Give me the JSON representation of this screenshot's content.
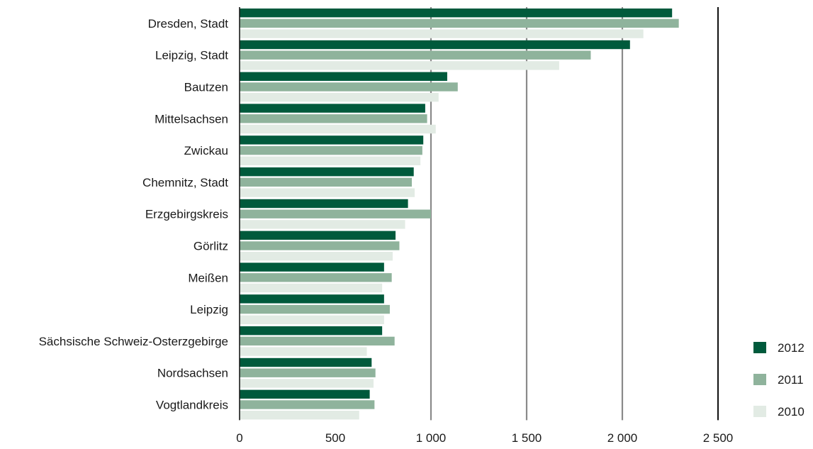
{
  "chart_data": {
    "type": "bar",
    "orientation": "horizontal",
    "categories": [
      "Dresden, Stadt",
      "Leipzig, Stadt",
      "Bautzen",
      "Mittelsachsen",
      "Zwickau",
      "Chemnitz, Stadt",
      "Erzgebirgskreis",
      "Görlitz",
      "Meißen",
      "Leipzig",
      "Sächsische Schweiz-Osterzgebirge",
      "Nordsachsen",
      "Vogtlandkreis"
    ],
    "series": [
      {
        "name": "2012",
        "color": "#005a3c",
        "values": [
          2260,
          2040,
          1085,
          970,
          960,
          910,
          880,
          815,
          755,
          755,
          745,
          690,
          680
        ]
      },
      {
        "name": "2011",
        "color": "#8fb39c",
        "values": [
          2295,
          1835,
          1140,
          980,
          955,
          900,
          1000,
          835,
          795,
          785,
          810,
          710,
          705
        ]
      },
      {
        "name": "2010",
        "color": "#e2ebe4",
        "values": [
          2110,
          1670,
          1040,
          1025,
          945,
          915,
          865,
          800,
          745,
          755,
          665,
          700,
          625
        ]
      }
    ],
    "xlim": [
      0,
      2500
    ],
    "xticks": [
      0,
      500,
      1000,
      1500,
      2000,
      2500
    ],
    "xtick_labels": [
      "0",
      "500",
      "1 000",
      "1 500",
      "2 000",
      "2 500"
    ],
    "gridlines": [
      1000,
      1500,
      2000
    ],
    "grid_color": "#8a8a8a",
    "legend": {
      "position": "bottom-right",
      "entries": [
        "2012",
        "2011",
        "2010"
      ]
    }
  }
}
